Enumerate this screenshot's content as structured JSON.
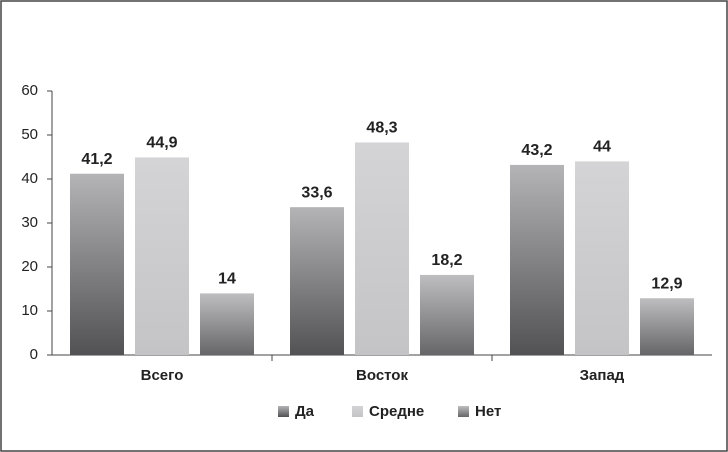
{
  "chart_data": {
    "type": "bar",
    "categories": [
      "Всего",
      "Восток",
      "Запад"
    ],
    "series": [
      {
        "name": "Да",
        "color": "#b4b4b6",
        "gradient_to": "#525254",
        "values": [
          41.2,
          33.6,
          43.2
        ],
        "value_labels": [
          "41,2",
          "33,6",
          "43,2"
        ]
      },
      {
        "name": "Средне",
        "color": "#d4d4d6",
        "gradient_to": "#c4c4c6",
        "values": [
          44.9,
          48.3,
          44
        ],
        "value_labels": [
          "44,9",
          "48,3",
          "44"
        ]
      },
      {
        "name": "Нет",
        "color": "#bebec0",
        "gradient_to": "#666668",
        "values": [
          14,
          18.2,
          12.9
        ],
        "value_labels": [
          "14",
          "18,2",
          "12,9"
        ]
      }
    ],
    "ylim": [
      0,
      60
    ],
    "yticks": [
      0,
      10,
      20,
      30,
      40,
      50,
      60
    ],
    "grid": false,
    "legend": "bottom"
  }
}
